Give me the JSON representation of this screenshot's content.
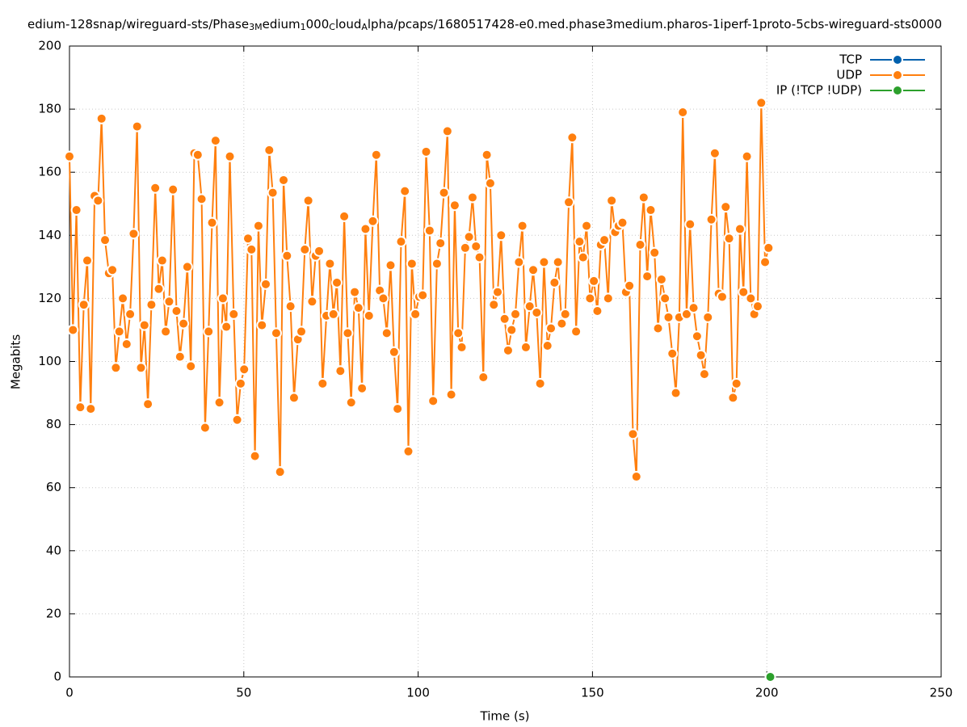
{
  "chart_data": {
    "type": "line",
    "title_segments": [
      {
        "text": "edium-128snap/wireguard-sts/Phase",
        "sub": false
      },
      {
        "text": "3M",
        "sub": true
      },
      {
        "text": "edium",
        "sub": false
      },
      {
        "text": "1",
        "sub": true
      },
      {
        "text": "000",
        "sub": false
      },
      {
        "text": "C",
        "sub": true
      },
      {
        "text": "loud",
        "sub": false
      },
      {
        "text": "A",
        "sub": true
      },
      {
        "text": "lpha/pcaps/1680517428-e0.med.phase3medium.pharos-1iperf-1proto-5cbs-wireguard-sts0000",
        "sub": false
      }
    ],
    "xlabel": "Time (s)",
    "ylabel": "Megabits",
    "xlim": [
      0,
      250
    ],
    "xticks": [
      0,
      50,
      100,
      150,
      200,
      250
    ],
    "ylim": [
      0,
      200
    ],
    "yticks": [
      0,
      20,
      40,
      60,
      80,
      100,
      120,
      140,
      160,
      180,
      200
    ],
    "grid": true,
    "legend": "top-right",
    "series": [
      {
        "name": "TCP",
        "color": "#0060ad",
        "x": [],
        "values": []
      },
      {
        "name": "UDP",
        "color": "#ff7f0e",
        "x": [
          0,
          1.0,
          2.0,
          3.1,
          4.1,
          5.1,
          6.1,
          7.2,
          8.2,
          9.2,
          10.2,
          11.3,
          12.3,
          13.3,
          14.3,
          15.3,
          16.4,
          17.4,
          18.4,
          19.4,
          20.5,
          21.5,
          22.5,
          23.5,
          24.6,
          25.6,
          26.6,
          27.6,
          28.6,
          29.7,
          30.7,
          31.7,
          32.7,
          33.8,
          34.8,
          35.8,
          36.8,
          37.9,
          38.9,
          39.9,
          40.9,
          41.9,
          43.0,
          44.0,
          45.0,
          46.0,
          47.1,
          48.1,
          49.1,
          50.1,
          51.2,
          52.2,
          53.2,
          54.2,
          55.2,
          56.3,
          57.3,
          58.3,
          59.3,
          60.4,
          61.4,
          62.4,
          63.4,
          64.4,
          65.5,
          66.5,
          67.5,
          68.5,
          69.6,
          70.6,
          71.6,
          72.6,
          73.7,
          74.7,
          75.7,
          76.7,
          77.7,
          78.8,
          79.8,
          80.8,
          81.8,
          82.9,
          83.9,
          84.9,
          85.9,
          87.0,
          88.0,
          89.0,
          90.0,
          91.0,
          92.1,
          93.1,
          94.1,
          95.1,
          96.2,
          97.2,
          98.2,
          99.2,
          100.3,
          101.3,
          102.3,
          103.3,
          104.3,
          105.4,
          106.4,
          107.4,
          108.4,
          109.5,
          110.5,
          111.5,
          112.5,
          113.5,
          114.6,
          115.6,
          116.6,
          117.6,
          118.7,
          119.7,
          120.7,
          121.7,
          122.8,
          123.8,
          124.8,
          125.8,
          126.8,
          127.9,
          128.9,
          129.9,
          130.9,
          132.0,
          133.0,
          134.0,
          135.0,
          136.1,
          137.1,
          138.1,
          139.1,
          140.1,
          141.2,
          142.2,
          143.2,
          144.2,
          145.3,
          146.3,
          147.3,
          148.3,
          149.3,
          150.4,
          151.4,
          152.4,
          153.4,
          154.5,
          155.5,
          156.5,
          157.5,
          158.6,
          159.6,
          160.6,
          161.6,
          162.6,
          163.7,
          164.7,
          165.7,
          166.7,
          167.8,
          168.8,
          169.8,
          170.8,
          171.8,
          172.9,
          173.9,
          174.9,
          175.9,
          177.0,
          178.0,
          179.0,
          180.0,
          181.1,
          182.1,
          183.1,
          184.1,
          185.1,
          186.2,
          187.2,
          188.2,
          189.2,
          190.3,
          191.3,
          192.3,
          193.3,
          194.3,
          195.4,
          196.4,
          197.4,
          198.4,
          199.5,
          200.5
        ],
        "values": [
          165,
          110,
          148,
          85.5,
          118,
          132,
          85,
          152.5,
          151,
          177,
          138.5,
          128,
          129,
          98,
          109.5,
          120,
          105.5,
          115,
          140.5,
          174.5,
          98,
          111.5,
          86.5,
          118,
          155,
          123,
          132,
          109.5,
          119,
          154.5,
          116,
          101.5,
          112,
          130,
          98.5,
          166,
          165.5,
          151.5,
          79,
          109.5,
          144,
          170,
          87,
          120,
          111,
          165,
          115,
          81.5,
          93,
          97.5,
          139,
          135.5,
          70,
          143,
          111.5,
          124.5,
          167,
          153.5,
          109,
          65,
          157.5,
          133.5,
          117.5,
          88.5,
          107,
          109.5,
          135.5,
          151,
          119,
          133.5,
          135,
          93,
          114.5,
          131,
          115,
          125,
          97,
          146,
          109,
          87,
          122,
          117,
          91.5,
          142,
          114.5,
          144.5,
          165.5,
          122.5,
          120,
          109,
          130.5,
          103,
          85,
          138,
          154,
          71.5,
          131,
          115,
          120.5,
          121,
          166.5,
          141.5,
          87.5,
          131,
          137.5,
          153.5,
          173,
          89.5,
          149.5,
          109,
          104.5,
          136,
          139.5,
          152,
          136.5,
          133,
          95,
          165.5,
          156.5,
          118,
          122,
          140,
          113.5,
          103.5,
          110,
          115,
          131.5,
          143,
          104.5,
          117.5,
          129,
          115.5,
          93,
          131.5,
          105,
          110.5,
          125,
          131.5,
          112,
          115,
          150.5,
          171,
          109.5,
          138,
          133,
          143,
          120,
          125.5,
          116,
          137,
          138.5,
          120,
          151,
          141,
          143,
          144,
          122,
          124,
          77,
          63.5,
          137,
          152,
          127,
          148,
          134.5,
          110.5,
          126,
          120,
          114,
          102.5,
          90,
          114,
          179,
          115,
          143.5,
          117,
          108,
          102,
          96,
          114,
          145,
          166,
          121.5,
          120.5,
          149,
          139,
          88.5,
          93,
          142,
          122,
          165,
          120,
          115,
          117.5,
          182,
          131.5,
          136
        ]
      },
      {
        "name": "IP (!TCP  !UDP)",
        "color": "#2ca02c",
        "x": [
          201
        ],
        "values": [
          0
        ]
      }
    ]
  }
}
